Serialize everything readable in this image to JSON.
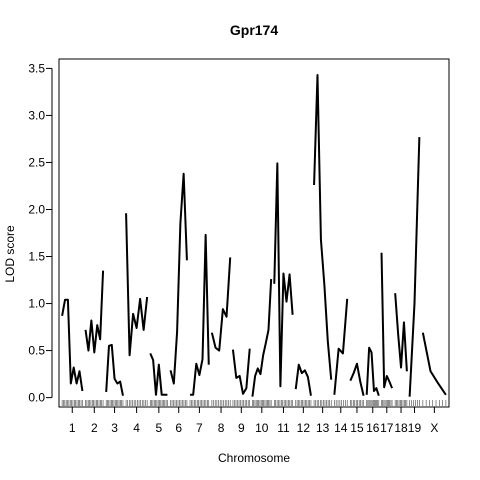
{
  "chart_data": {
    "type": "line",
    "title": "Gpr174",
    "xlabel": "Chromosome",
    "ylabel": "LOD score",
    "ylim": [
      -0.1,
      3.6
    ],
    "xlim": [
      0,
      100
    ],
    "yticks": [
      "0.0",
      "0.5",
      "1.0",
      "1.5",
      "2.0",
      "2.5",
      "3.0",
      "3.5"
    ],
    "grid": false,
    "legend": "none",
    "line_color": "#000000",
    "chromosomes": [
      {
        "label": "1",
        "start": 0.8,
        "end": 6.0,
        "lod": [
          0.87,
          1.04,
          1.04,
          0.15,
          0.32,
          0.15,
          0.28,
          0.07
        ]
      },
      {
        "label": "2",
        "start": 6.8,
        "end": 11.3,
        "lod": [
          0.72,
          0.5,
          0.82,
          0.48,
          0.77,
          0.62,
          1.35
        ]
      },
      {
        "label": "3",
        "start": 12.1,
        "end": 16.4,
        "lod": [
          0.06,
          0.55,
          0.56,
          0.2,
          0.15,
          0.17,
          0.02
        ]
      },
      {
        "label": "4",
        "start": 17.2,
        "end": 22.6,
        "lod": [
          1.96,
          0.45,
          0.89,
          0.74,
          1.05,
          0.72,
          1.07
        ]
      },
      {
        "label": "5",
        "start": 23.4,
        "end": 27.8,
        "lod": [
          0.47,
          0.4,
          0.03,
          0.35,
          0.03,
          0.03,
          0.03
        ]
      },
      {
        "label": "6",
        "start": 28.6,
        "end": 32.8,
        "lod": [
          0.29,
          0.15,
          0.7,
          1.85,
          2.38,
          1.46
        ]
      },
      {
        "label": "7",
        "start": 33.6,
        "end": 38.4,
        "lod": [
          0.03,
          0.03,
          0.36,
          0.24,
          0.41,
          1.73,
          0.35
        ]
      },
      {
        "label": "8",
        "start": 39.2,
        "end": 43.9,
        "lod": [
          0.69,
          0.53,
          0.5,
          0.94,
          0.86,
          1.49
        ]
      },
      {
        "label": "9",
        "start": 44.6,
        "end": 48.9,
        "lod": [
          0.51,
          0.21,
          0.23,
          0.04,
          0.1,
          0.52
        ]
      },
      {
        "label": "10",
        "start": 49.6,
        "end": 54.4,
        "lod": [
          0.01,
          0.23,
          0.31,
          0.25,
          0.45,
          0.58,
          0.72,
          1.26
        ]
      },
      {
        "label": "11",
        "start": 55.2,
        "end": 59.9,
        "lod": [
          1.21,
          2.49,
          0.12,
          1.32,
          1.02,
          1.31,
          0.88
        ]
      },
      {
        "label": "12",
        "start": 60.7,
        "end": 64.6,
        "lod": [
          0.09,
          0.35,
          0.26,
          0.29,
          0.22,
          0.02
        ]
      },
      {
        "label": "13",
        "start": 65.4,
        "end": 69.8,
        "lod": [
          2.26,
          3.43,
          1.68,
          1.2,
          0.6,
          0.19
        ]
      },
      {
        "label": "14",
        "start": 70.6,
        "end": 73.9,
        "lod": [
          0.03,
          0.52,
          0.47,
          1.05
        ]
      },
      {
        "label": "15",
        "start": 74.7,
        "end": 78.1,
        "lod": [
          0.18,
          0.26,
          0.36,
          0.17,
          0.02
        ]
      },
      {
        "label": "16",
        "start": 78.9,
        "end": 82.0,
        "lod": [
          0.03,
          0.53,
          0.48,
          0.07,
          0.1,
          0.02
        ]
      },
      {
        "label": "17",
        "start": 82.7,
        "end": 85.4,
        "lod": [
          1.54,
          0.11,
          0.23,
          0.17,
          0.1
        ]
      },
      {
        "label": "18",
        "start": 86.2,
        "end": 89.2,
        "lod": [
          1.11,
          0.68,
          0.32,
          0.8,
          0.28
        ]
      },
      {
        "label": "19",
        "start": 89.9,
        "end": 92.4,
        "lod": [
          0.01,
          1.0,
          2.77
        ]
      },
      {
        "label": "X",
        "start": 93.3,
        "end": 99.2,
        "lod": [
          0.69,
          0.28,
          0.15,
          0.03
        ]
      }
    ]
  }
}
